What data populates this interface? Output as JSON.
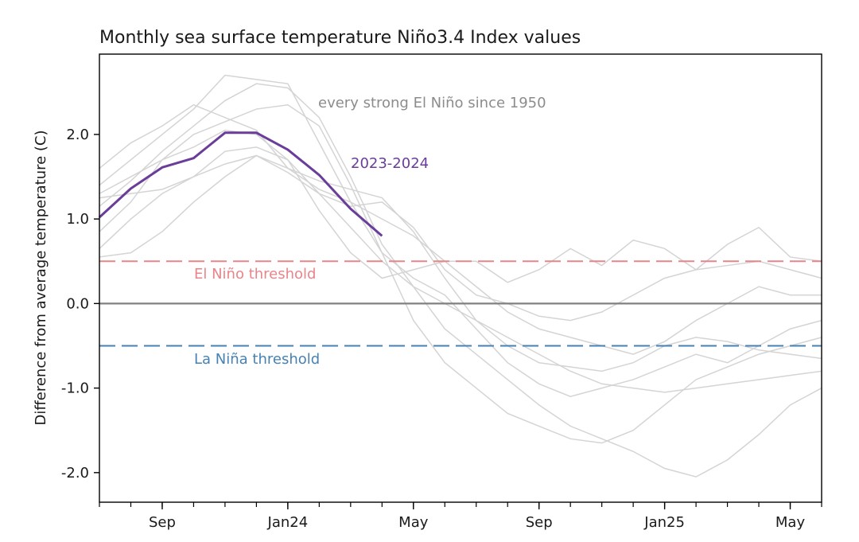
{
  "chart_data": {
    "type": "line",
    "title": "Monthly sea surface temperature Niño3.4 Index values",
    "xlabel": "",
    "ylabel": "Difference from average temperature (C)",
    "x_start": "2023-06",
    "x_end": "2025-06",
    "xlim": [
      0,
      23
    ],
    "ylim": [
      -2.35,
      2.95
    ],
    "x_ticks": [
      {
        "x": 2,
        "label": "Sep"
      },
      {
        "x": 6,
        "label": "Jan24"
      },
      {
        "x": 10,
        "label": "May"
      },
      {
        "x": 14,
        "label": "Sep"
      },
      {
        "x": 18,
        "label": "Jan25"
      },
      {
        "x": 22,
        "label": "May"
      }
    ],
    "y_ticks": [
      {
        "y": 2.0,
        "label": "2.0"
      },
      {
        "y": 1.0,
        "label": "1.0"
      },
      {
        "y": 0.0,
        "label": "0.0"
      },
      {
        "y": -1.0,
        "label": "-1.0"
      },
      {
        "y": -2.0,
        "label": "-2.0"
      }
    ],
    "grid": false,
    "zero_line": {
      "y": 0,
      "color": "#808080"
    },
    "thresholds": [
      {
        "name": "El Niño threshold",
        "y": 0.5,
        "color": "#e8858a"
      },
      {
        "name": "La Niña threshold",
        "y": -0.5,
        "color": "#4682b4"
      }
    ],
    "highlight": {
      "name": "2023-2024",
      "color": "#6a3d9a",
      "x": [
        0,
        1,
        2,
        3,
        4,
        5,
        6,
        7,
        8,
        9
      ],
      "values": [
        1.02,
        1.36,
        1.61,
        1.72,
        2.02,
        2.02,
        1.82,
        1.52,
        1.12,
        0.8
      ]
    },
    "background_series": {
      "name": "every strong El Niño since 1950",
      "color": "#d4d4d4",
      "series": [
        {
          "values": [
            1.15,
            1.45,
            1.8,
            2.1,
            2.4,
            2.6,
            2.55,
            2.2,
            1.5,
            0.7,
            0.2,
            -0.3,
            -0.6,
            -0.9,
            -1.2,
            -1.45,
            -1.6,
            -1.75,
            -1.95,
            -2.05,
            -1.85,
            -1.55,
            -1.2,
            -1.0
          ]
        },
        {
          "values": [
            0.85,
            1.2,
            1.7,
            2.0,
            2.15,
            2.3,
            2.35,
            2.1,
            1.4,
            0.6,
            -0.2,
            -0.7,
            -1.0,
            -1.3,
            -1.45,
            -1.6,
            -1.65,
            -1.5,
            -1.2,
            -0.9,
            -0.75,
            -0.6,
            -0.5,
            -0.4
          ]
        },
        {
          "values": [
            1.4,
            1.7,
            2.0,
            2.3,
            2.7,
            2.65,
            2.6,
            1.9,
            1.2,
            0.6,
            0.3,
            0.1,
            -0.3,
            -0.7,
            -0.95,
            -1.1,
            -1.0,
            -0.9,
            -0.75,
            -0.6,
            -0.7,
            -0.5,
            -0.3,
            -0.2
          ]
        },
        {
          "values": [
            0.65,
            1.0,
            1.3,
            1.5,
            1.8,
            1.85,
            1.7,
            1.1,
            0.6,
            0.3,
            0.4,
            0.5,
            0.5,
            0.25,
            0.4,
            0.65,
            0.45,
            0.75,
            0.65,
            0.4,
            0.7,
            0.9,
            0.55,
            0.5
          ]
        },
        {
          "values": [
            1.3,
            1.5,
            1.7,
            1.85,
            2.05,
            2.0,
            1.7,
            1.3,
            0.9,
            0.5,
            0.2,
            0.0,
            -0.2,
            -0.4,
            -0.6,
            -0.8,
            -0.95,
            -1.0,
            -1.05,
            -1.0,
            -0.95,
            -0.9,
            -0.85,
            -0.8
          ]
        },
        {
          "values": [
            0.55,
            0.6,
            0.85,
            1.2,
            1.5,
            1.75,
            1.55,
            1.3,
            1.15,
            1.2,
            0.9,
            0.4,
            0.1,
            0.0,
            -0.15,
            -0.2,
            -0.1,
            0.1,
            0.3,
            0.4,
            0.45,
            0.5,
            0.4,
            0.3
          ]
        },
        {
          "values": [
            1.6,
            1.9,
            2.1,
            2.35,
            2.2,
            2.05,
            1.6,
            1.35,
            1.2,
            1.0,
            0.8,
            0.5,
            0.2,
            -0.1,
            -0.3,
            -0.4,
            -0.5,
            -0.6,
            -0.45,
            -0.2,
            0.0,
            0.2,
            0.1,
            0.1
          ]
        },
        {
          "values": [
            1.25,
            1.3,
            1.35,
            1.5,
            1.65,
            1.75,
            1.6,
            1.45,
            1.35,
            1.25,
            0.85,
            0.3,
            -0.2,
            -0.5,
            -0.7,
            -0.75,
            -0.8,
            -0.7,
            -0.5,
            -0.4,
            -0.45,
            -0.55,
            -0.6,
            -0.65
          ]
        }
      ]
    }
  }
}
